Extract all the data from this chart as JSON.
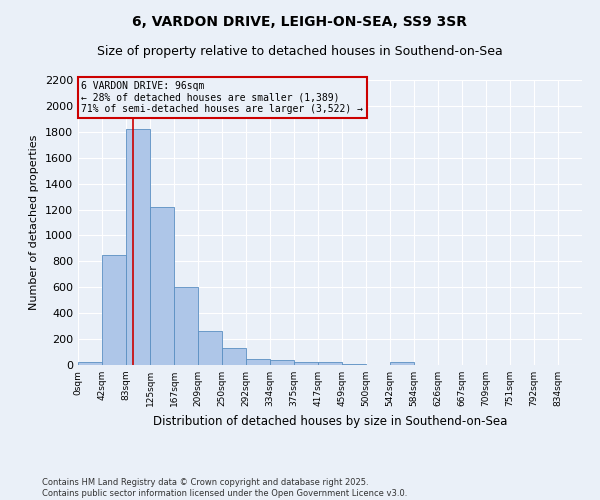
{
  "title": "6, VARDON DRIVE, LEIGH-ON-SEA, SS9 3SR",
  "subtitle": "Size of property relative to detached houses in Southend-on-Sea",
  "xlabel": "Distribution of detached houses by size in Southend-on-Sea",
  "ylabel": "Number of detached properties",
  "footer_line1": "Contains HM Land Registry data © Crown copyright and database right 2025.",
  "footer_line2": "Contains public sector information licensed under the Open Government Licence v3.0.",
  "bin_labels": [
    "0sqm",
    "42sqm",
    "83sqm",
    "125sqm",
    "167sqm",
    "209sqm",
    "250sqm",
    "292sqm",
    "334sqm",
    "375sqm",
    "417sqm",
    "459sqm",
    "500sqm",
    "542sqm",
    "584sqm",
    "626sqm",
    "667sqm",
    "709sqm",
    "751sqm",
    "792sqm",
    "834sqm"
  ],
  "bar_values": [
    20,
    850,
    1820,
    1220,
    600,
    260,
    130,
    45,
    35,
    25,
    20,
    5,
    0,
    20,
    0,
    0,
    0,
    0,
    0,
    0,
    0
  ],
  "bar_color": "#aec6e8",
  "bar_edge_color": "#5a8fc2",
  "ylim": [
    0,
    2200
  ],
  "yticks": [
    0,
    200,
    400,
    600,
    800,
    1000,
    1200,
    1400,
    1600,
    1800,
    2000,
    2200
  ],
  "vline_x": 96,
  "vline_color": "#cc0000",
  "annotation_text": "6 VARDON DRIVE: 96sqm\n← 28% of detached houses are smaller (1,389)\n71% of semi-detached houses are larger (3,522) →",
  "annotation_box_color": "#cc0000",
  "bin_width": 42,
  "background_color": "#eaf0f8",
  "grid_color": "#ffffff",
  "title_fontsize": 10,
  "subtitle_fontsize": 9,
  "ylabel_fontsize": 8,
  "xlabel_fontsize": 8.5,
  "ytick_fontsize": 8,
  "xtick_fontsize": 6.5,
  "annotation_fontsize": 7,
  "footer_fontsize": 6
}
